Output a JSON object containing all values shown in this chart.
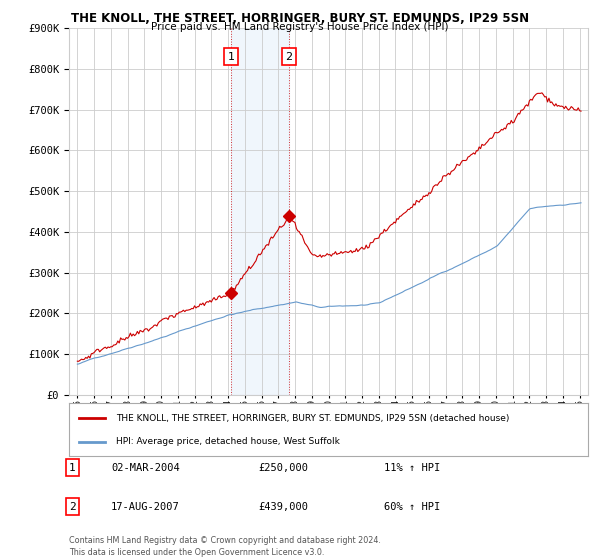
{
  "title": "THE KNOLL, THE STREET, HORRINGER, BURY ST. EDMUNDS, IP29 5SN",
  "subtitle": "Price paid vs. HM Land Registry's House Price Index (HPI)",
  "red_label": "THE KNOLL, THE STREET, HORRINGER, BURY ST. EDMUNDS, IP29 5SN (detached house)",
  "blue_label": "HPI: Average price, detached house, West Suffolk",
  "footnote1": "Contains HM Land Registry data © Crown copyright and database right 2024.",
  "footnote2": "This data is licensed under the Open Government Licence v3.0.",
  "sale1_date": "02-MAR-2004",
  "sale1_price": "£250,000",
  "sale1_hpi": "11% ↑ HPI",
  "sale1_year": 2004.17,
  "sale1_value": 250000,
  "sale2_date": "17-AUG-2007",
  "sale2_price": "£439,000",
  "sale2_hpi": "60% ↑ HPI",
  "sale2_year": 2007.63,
  "sale2_value": 439000,
  "ylim": [
    0,
    900000
  ],
  "xlim_min": 1994.5,
  "xlim_max": 2025.5,
  "red_color": "#cc0000",
  "blue_color": "#6699cc",
  "shade_color": "#d0e4f7",
  "background_color": "#ffffff",
  "grid_color": "#cccccc"
}
